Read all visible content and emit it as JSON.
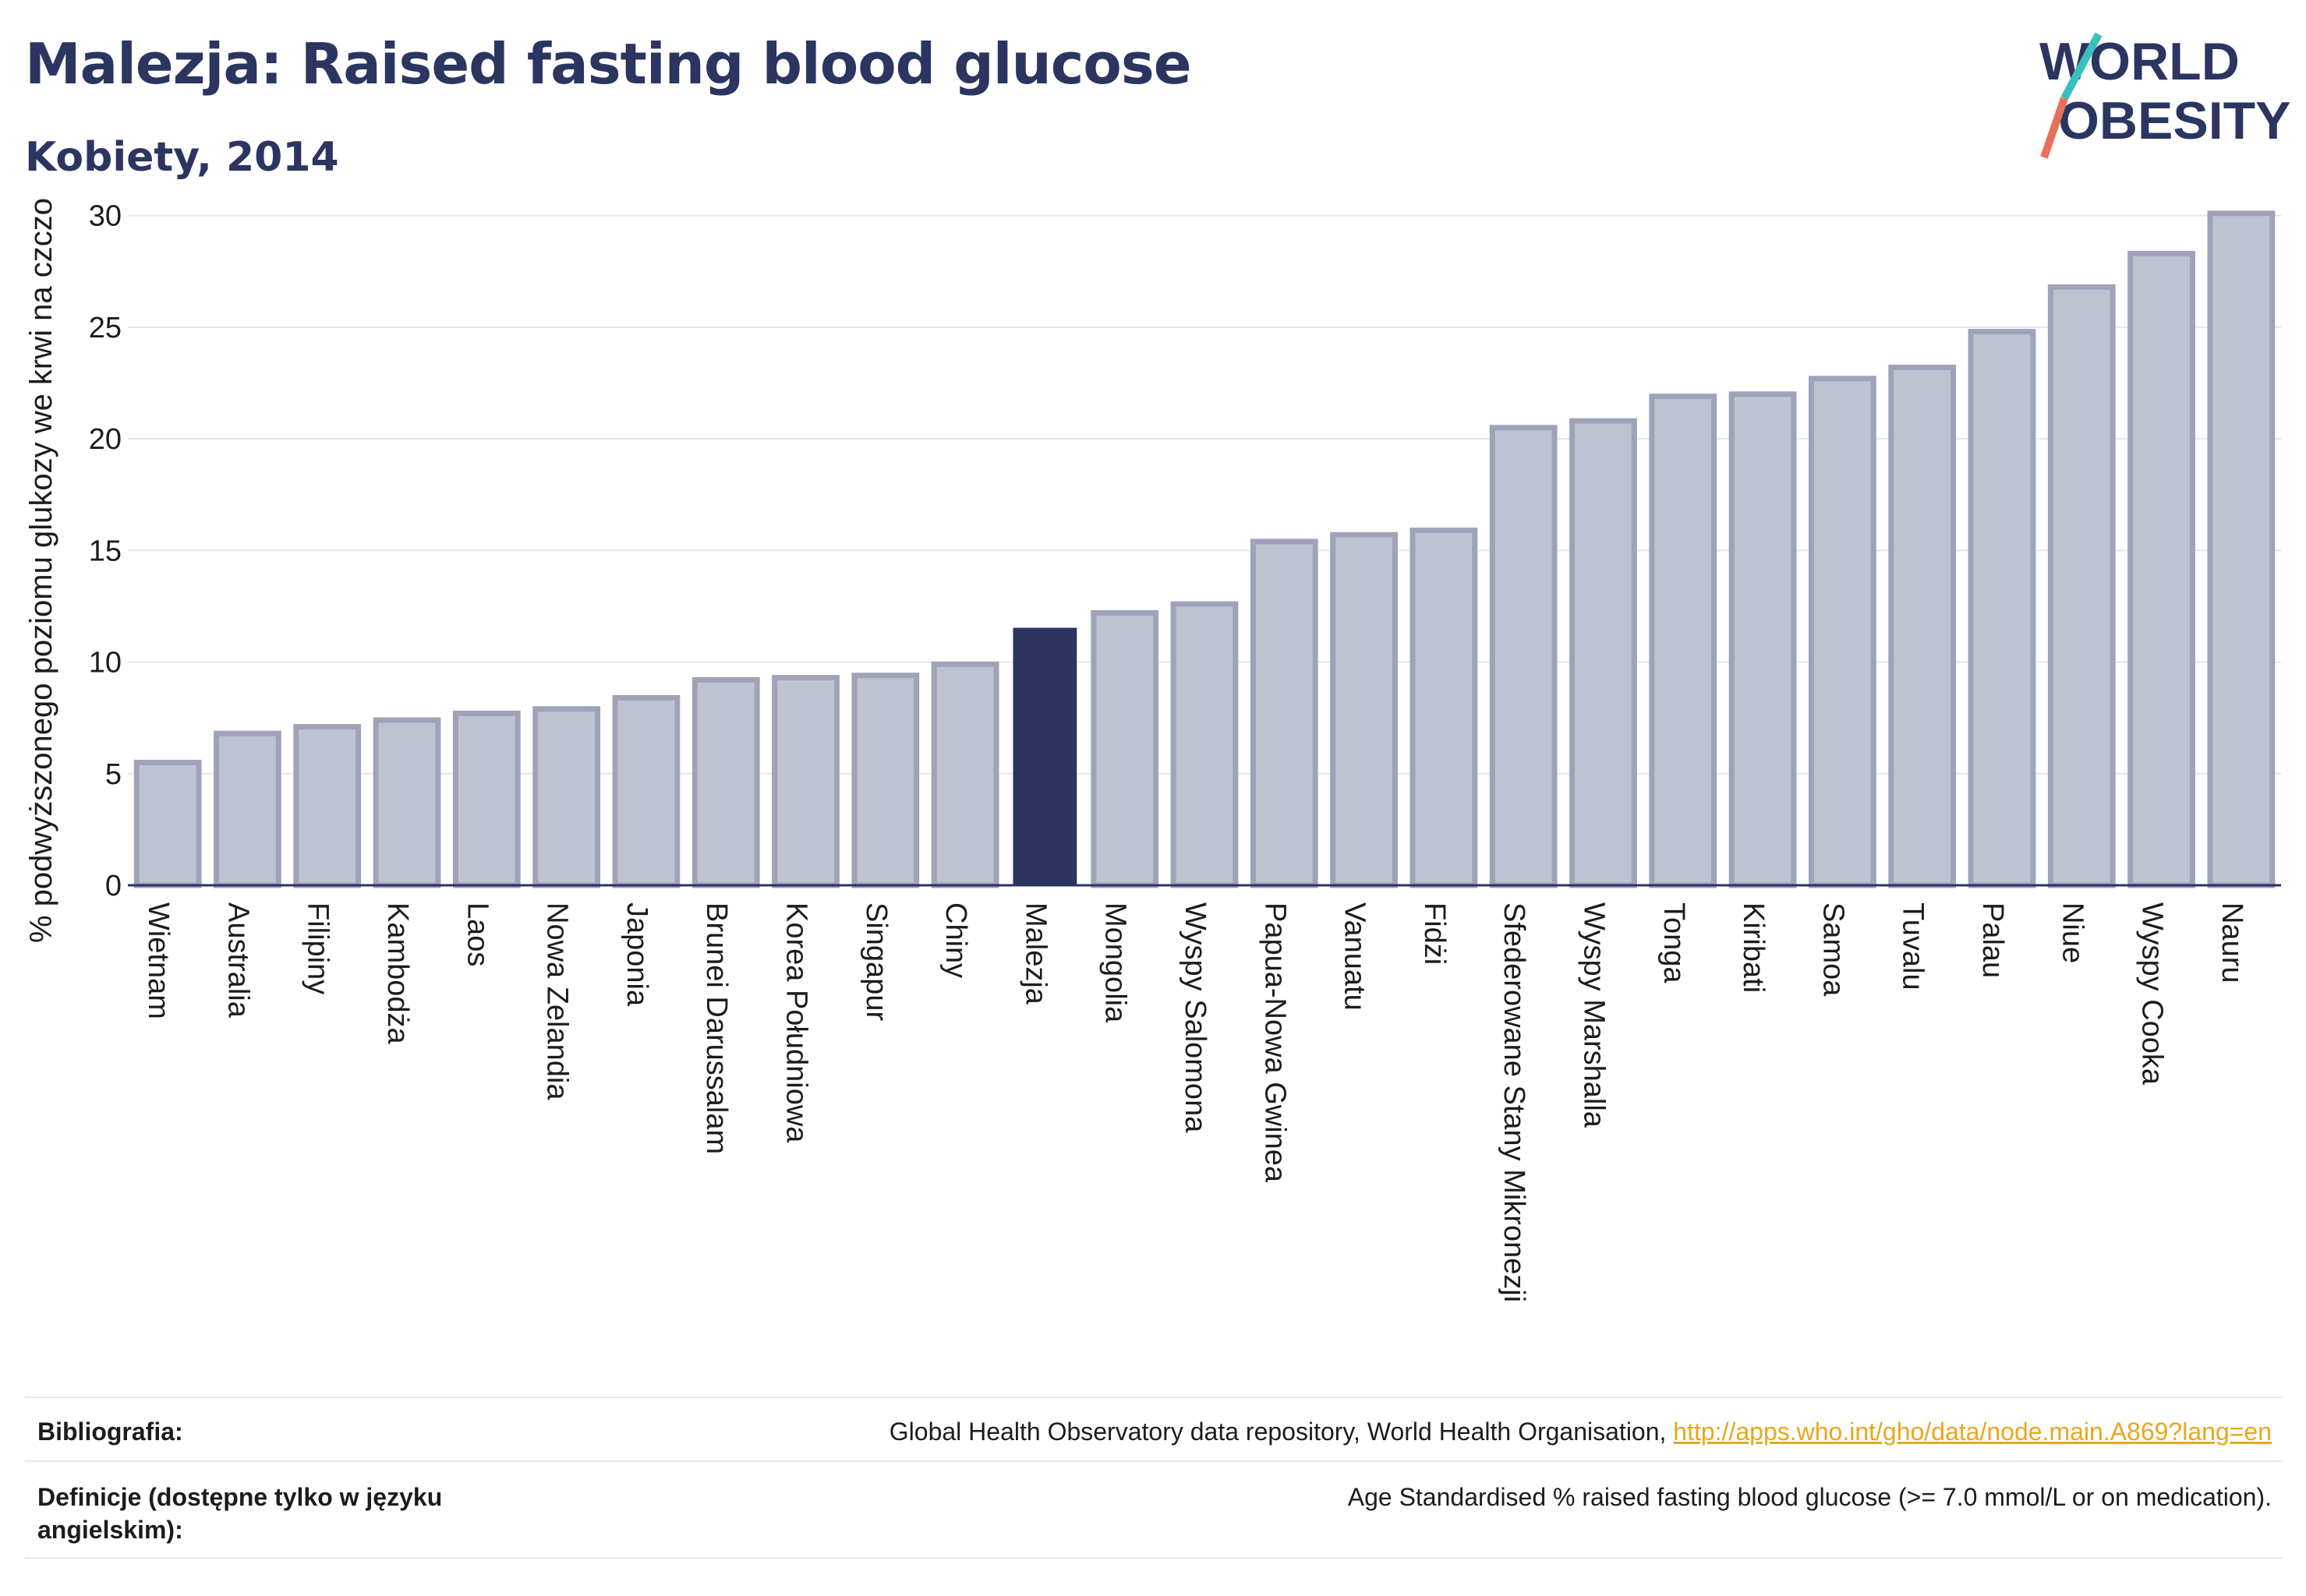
{
  "header": {
    "title": "Malezja: Raised fasting blood glucose",
    "subtitle": "Kobiety, 2014"
  },
  "logo": {
    "line1": "WORLD",
    "line2": "OBESITY"
  },
  "colors": {
    "bar": "#bfc2d0",
    "bar_stroke": "#9ea3ba",
    "highlight": "#2b3560",
    "grid": "#e6e6ea",
    "axis": "#2b3560",
    "logo_teal": "#3bbfbf",
    "logo_red": "#e8705a",
    "link": "#e8a81c"
  },
  "chart_data": {
    "type": "bar",
    "title": "Malezja: Raised fasting blood glucose",
    "subtitle": "Kobiety, 2014",
    "xlabel": "",
    "ylabel": "% podwyższonego poziomu glukozy we krwi na czczo",
    "ylim": [
      0,
      31
    ],
    "yticks": [
      0,
      5,
      10,
      15,
      20,
      25,
      30
    ],
    "grid": true,
    "highlight": "Malezja",
    "categories": [
      "Wietnam",
      "Australia",
      "Filipiny",
      "Kambodża",
      "Laos",
      "Nowa Zelandia",
      "Japonia",
      "Brunei Darussalam",
      "Korea Południowa",
      "Singapur",
      "Chiny",
      "Malezja",
      "Mongolia",
      "Wyspy Salomona",
      "Papua-Nowa Gwinea",
      "Vanuatu",
      "Fidżi",
      "Sfederowane Stany Mikronezji",
      "Wyspy Marshalla",
      "Tonga",
      "Kiribati",
      "Samoa",
      "Tuvalu",
      "Palau",
      "Niue",
      "Wyspy Cooka",
      "Nauru"
    ],
    "values": [
      5.5,
      6.8,
      7.1,
      7.4,
      7.7,
      7.9,
      8.4,
      9.2,
      9.3,
      9.4,
      9.9,
      11.5,
      12.2,
      12.6,
      15.4,
      15.7,
      15.9,
      20.5,
      20.8,
      21.9,
      22.0,
      22.7,
      23.2,
      24.8,
      26.8,
      28.3,
      30.1
    ]
  },
  "footer": {
    "bibliography_label": "Bibliografia:",
    "bibliography_text": "Global Health Observatory data repository, World Health Organisation, ",
    "bibliography_link": "http://apps.who.int/gho/data/node.main.A869?lang=en",
    "definitions_label": "Definicje (dostępne tylko w języku angielskim):",
    "definitions_text": "Age Standardised % raised fasting blood glucose (>= 7.0 mmol/L or on medication)."
  }
}
